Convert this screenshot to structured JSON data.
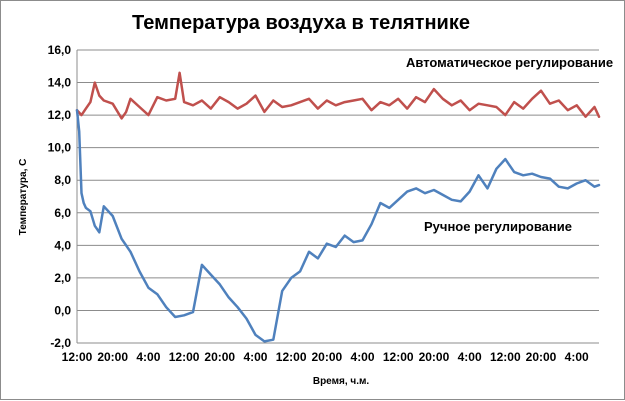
{
  "chart_data": {
    "type": "line",
    "title": "Температура  воздуха в телятнике",
    "xlabel": "Время, ч.м.",
    "ylabel": "Температура, С",
    "ylim": [
      -2,
      16
    ],
    "ytick_labels": [
      "-2,0",
      "0,0",
      "2,0",
      "4,0",
      "6,0",
      "8,0",
      "10,0",
      "12,0",
      "14,0",
      "16,0"
    ],
    "xtick_labels": [
      "12:00",
      "20:00",
      "4:00",
      "12:00",
      "20:00",
      "4:00",
      "12:00",
      "20:00",
      "4:00",
      "12:00",
      "20:00",
      "4:00",
      "12:00",
      "20:00",
      "4:00"
    ],
    "x_hours": [
      0,
      8,
      16,
      24,
      32,
      40,
      48,
      56,
      64,
      72,
      80,
      88,
      96,
      104,
      112
    ],
    "xlim": [
      0,
      117
    ],
    "grid": "horizontal",
    "annotations": [
      {
        "text": "Автоматическое  регулирование"
      },
      {
        "text": "Ручное регулирование"
      }
    ],
    "series": [
      {
        "color": "#c0504d",
        "x": [
          0,
          1,
          2,
          3,
          4,
          5,
          6,
          8,
          10,
          11,
          12,
          14,
          16,
          18,
          20,
          22,
          23,
          24,
          26,
          28,
          30,
          32,
          34,
          36,
          38,
          40,
          42,
          44,
          46,
          48,
          50,
          52,
          54,
          56,
          58,
          60,
          62,
          64,
          66,
          68,
          70,
          72,
          74,
          76,
          78,
          80,
          82,
          84,
          86,
          88,
          90,
          92,
          94,
          96,
          98,
          100,
          102,
          104,
          106,
          108,
          110,
          112,
          114,
          116,
          117
        ],
        "values": [
          12.3,
          12.0,
          12.4,
          12.8,
          14.0,
          13.2,
          12.9,
          12.7,
          11.8,
          12.2,
          13.0,
          12.5,
          12.0,
          13.1,
          12.9,
          13.0,
          14.6,
          12.8,
          12.6,
          12.9,
          12.4,
          13.1,
          12.8,
          12.4,
          12.7,
          13.2,
          12.2,
          12.9,
          12.5,
          12.6,
          12.8,
          13.0,
          12.4,
          12.9,
          12.6,
          12.8,
          12.9,
          13.0,
          12.3,
          12.8,
          12.6,
          13.0,
          12.4,
          13.1,
          12.8,
          13.6,
          13.0,
          12.6,
          12.9,
          12.3,
          12.7,
          12.6,
          12.5,
          12.0,
          12.8,
          12.4,
          13.0,
          13.5,
          12.7,
          12.9,
          12.3,
          12.6,
          11.9,
          12.5,
          11.9
        ]
      },
      {
        "color": "#4f81bd",
        "x": [
          0,
          0.5,
          1,
          1.5,
          2,
          3,
          4,
          5,
          6,
          8,
          10,
          12,
          14,
          16,
          18,
          20,
          22,
          24,
          26,
          28,
          30,
          32,
          34,
          36,
          38,
          40,
          42,
          44,
          46,
          48,
          50,
          52,
          54,
          56,
          58,
          60,
          62,
          64,
          66,
          68,
          70,
          72,
          74,
          76,
          78,
          80,
          82,
          84,
          86,
          88,
          90,
          92,
          94,
          96,
          98,
          100,
          102,
          104,
          106,
          108,
          110,
          112,
          114,
          116,
          117
        ],
        "values": [
          12.3,
          11.0,
          7.2,
          6.6,
          6.3,
          6.1,
          5.2,
          4.8,
          6.4,
          5.8,
          4.4,
          3.6,
          2.4,
          1.4,
          1.0,
          0.2,
          -0.4,
          -0.3,
          -0.1,
          2.8,
          2.2,
          1.6,
          0.8,
          0.2,
          -0.5,
          -1.5,
          -1.9,
          -1.8,
          1.2,
          2.0,
          2.4,
          3.6,
          3.2,
          4.1,
          3.9,
          4.6,
          4.2,
          4.3,
          5.3,
          6.6,
          6.3,
          6.8,
          7.3,
          7.5,
          7.2,
          7.4,
          7.1,
          6.8,
          6.7,
          7.3,
          8.3,
          7.5,
          8.7,
          9.3,
          8.5,
          8.3,
          8.4,
          8.2,
          8.1,
          7.6,
          7.5,
          7.8,
          8.0,
          7.6,
          7.7
        ]
      }
    ]
  }
}
